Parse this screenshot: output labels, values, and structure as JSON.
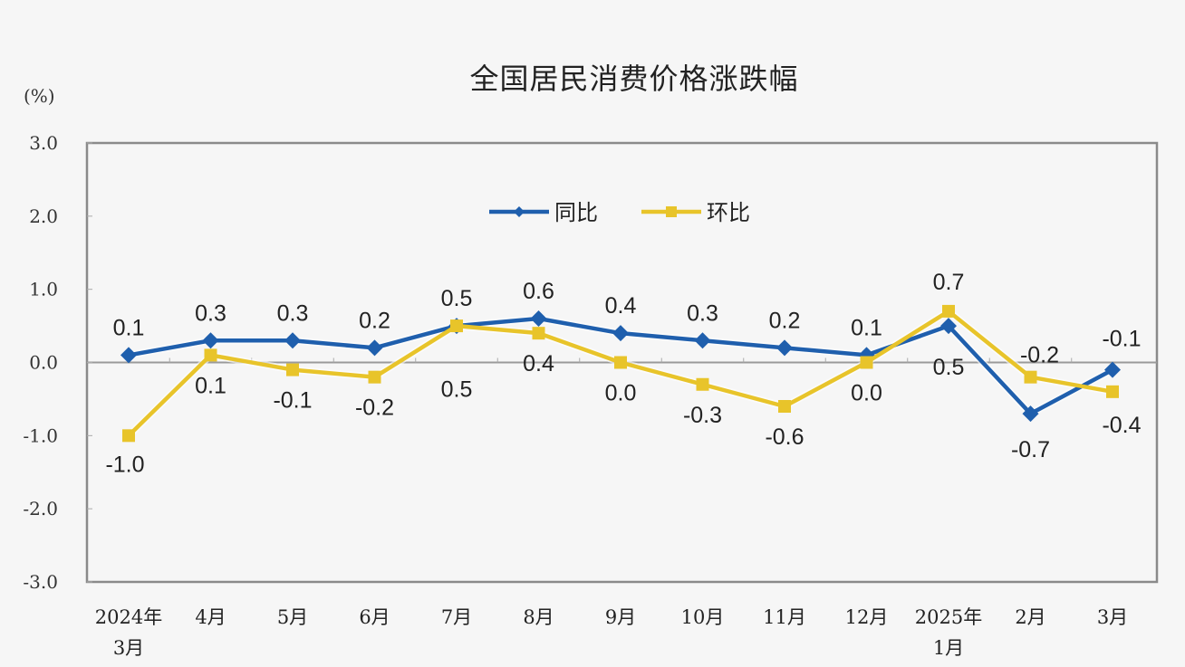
{
  "chart_data": {
    "type": "line",
    "title": "全国居民消费价格涨跌幅",
    "ylabel": "(%)",
    "xlabel": "",
    "ylim": [
      -3.0,
      3.0
    ],
    "yticks": [
      "3.0",
      "2.0",
      "1.0",
      "0.0",
      "-1.0",
      "-2.0",
      "-3.0"
    ],
    "categories": [
      "2024年3月",
      "4月",
      "5月",
      "6月",
      "7月",
      "8月",
      "9月",
      "10月",
      "11月",
      "12月",
      "2025年1月",
      "2月",
      "3月"
    ],
    "x_tick_lines": [
      [
        "2024年",
        "3月"
      ],
      [
        "4月"
      ],
      [
        "5月"
      ],
      [
        "6月"
      ],
      [
        "7月"
      ],
      [
        "8月"
      ],
      [
        "9月"
      ],
      [
        "10月"
      ],
      [
        "11月"
      ],
      [
        "12月"
      ],
      [
        "2025年",
        "1月"
      ],
      [
        "2月"
      ],
      [
        "3月"
      ]
    ],
    "series": [
      {
        "name": "同比",
        "color": "#1f5fad",
        "marker": "diamond",
        "values": [
          0.1,
          0.3,
          0.3,
          0.2,
          0.5,
          0.6,
          0.4,
          0.3,
          0.2,
          0.1,
          0.5,
          -0.7,
          -0.1
        ]
      },
      {
        "name": "环比",
        "color": "#e8c42a",
        "marker": "square",
        "values": [
          -1.0,
          0.1,
          -0.1,
          -0.2,
          0.5,
          0.4,
          0.0,
          -0.3,
          -0.6,
          0.0,
          0.7,
          -0.2,
          -0.4
        ]
      }
    ],
    "grid": false,
    "legend_position": "top-center-inside"
  },
  "header": {
    "title": "全国居民消费价格涨跌幅",
    "unit": "(%)"
  },
  "legend": [
    {
      "label": "同比"
    },
    {
      "label": "环比"
    }
  ]
}
